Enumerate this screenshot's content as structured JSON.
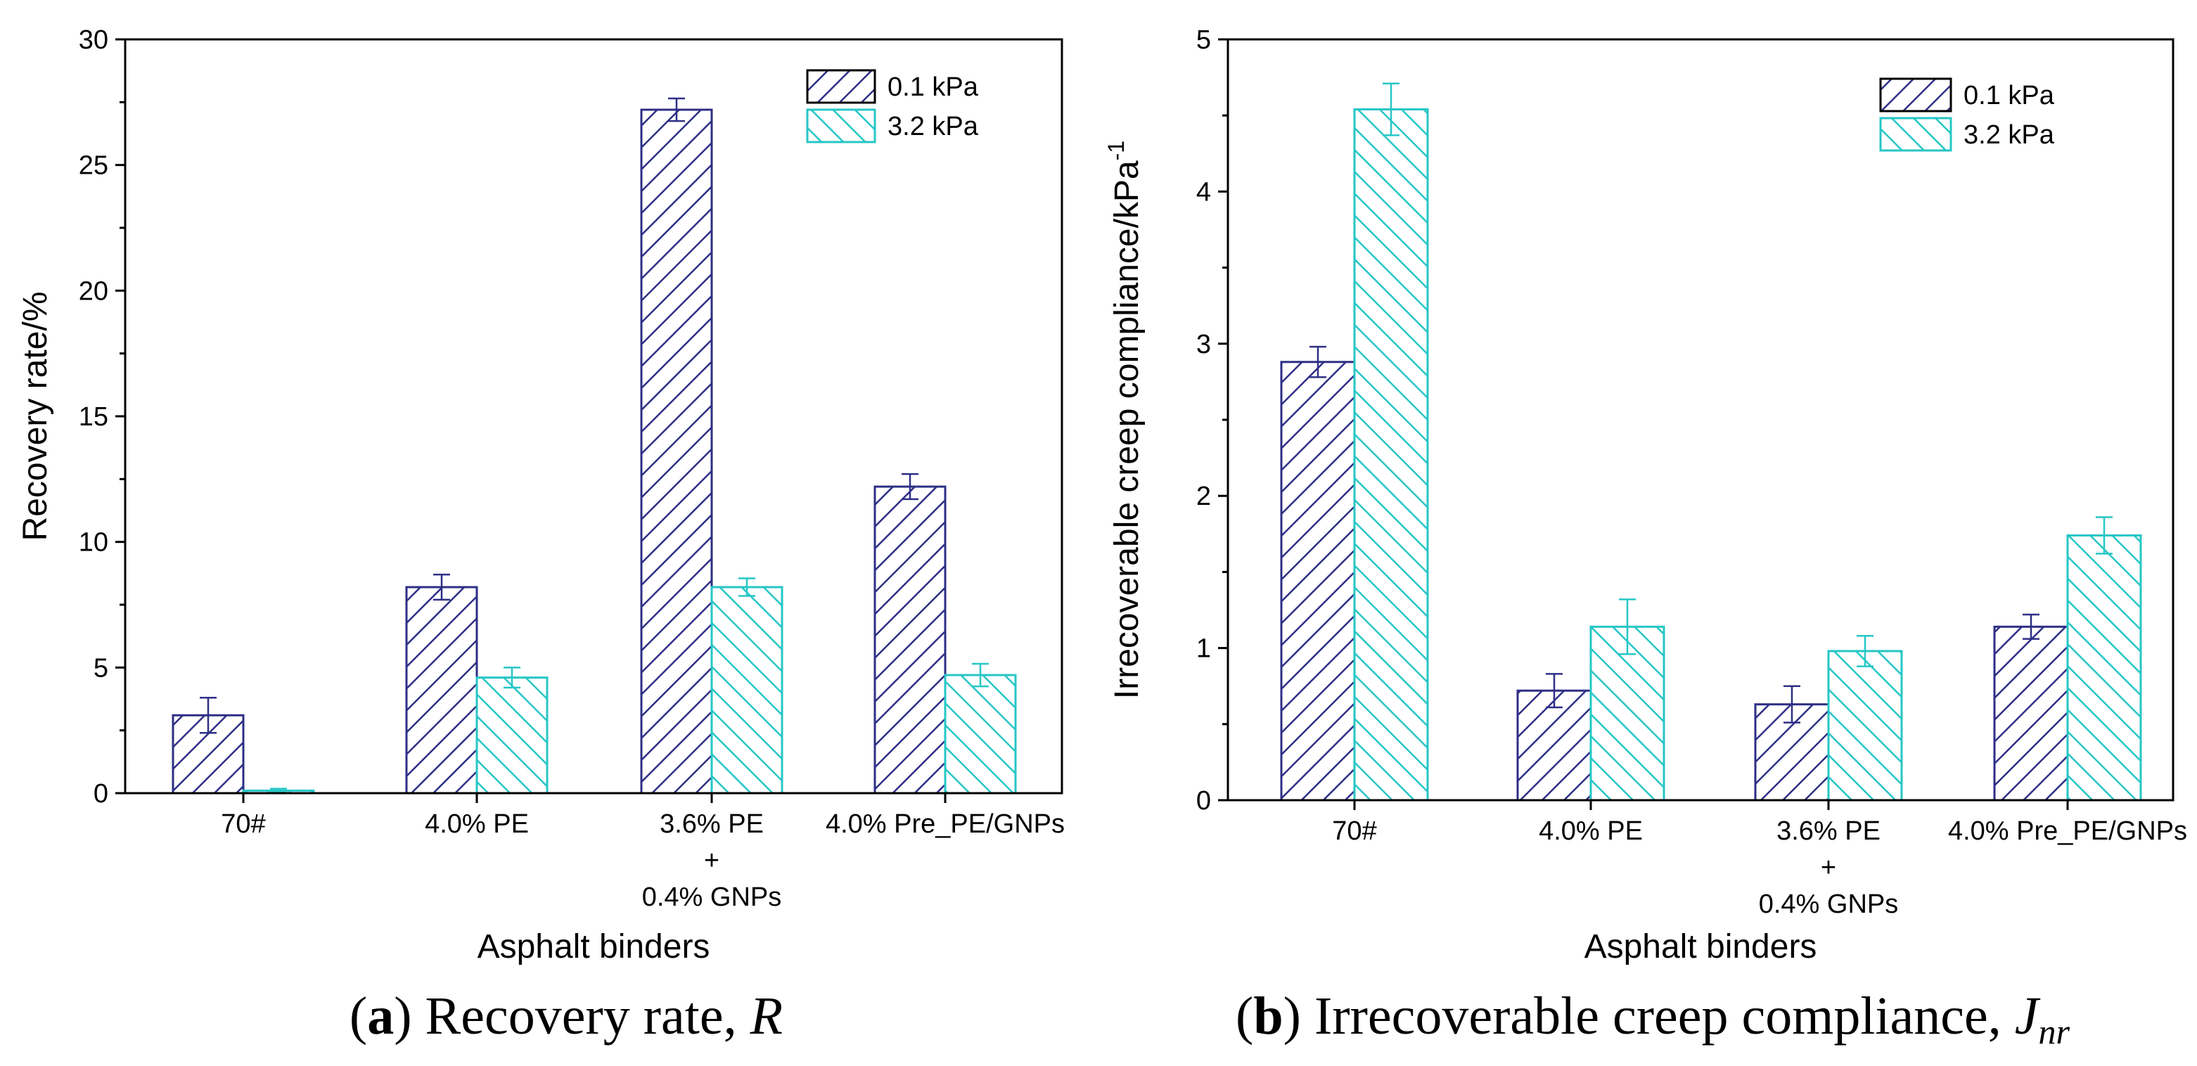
{
  "chart_data": [
    {
      "type": "bar",
      "title": "",
      "xlabel": "Asphalt binders",
      "ylabel": "Recovery rate/%",
      "ylim": [
        0,
        30
      ],
      "yticks": [
        "0",
        "5",
        "10",
        "15",
        "20",
        "25",
        "30"
      ],
      "categories": [
        [
          "70#"
        ],
        [
          "4.0% PE"
        ],
        [
          "3.6% PE",
          "+",
          "0.4% GNPs"
        ],
        [
          "4.0% Pre_PE/GNPs"
        ]
      ],
      "series": [
        {
          "name": "0.1 kPa",
          "color": "#2e2f86",
          "pattern": "hatch-right",
          "values": [
            3.1,
            8.2,
            27.2,
            12.2
          ],
          "errors": [
            0.7,
            0.5,
            0.45,
            0.5
          ]
        },
        {
          "name": "3.2 kPa",
          "color": "#26c6c6",
          "pattern": "hatch-left",
          "values": [
            0.1,
            4.6,
            8.2,
            4.7
          ],
          "errors": [
            0.08,
            0.4,
            0.35,
            0.45
          ]
        }
      ],
      "legend_position": "top-right",
      "caption": {
        "label": "a",
        "text": "Recovery rate, ",
        "symbol": "R",
        "symbol_sub": ""
      }
    },
    {
      "type": "bar",
      "title": "",
      "xlabel": "Asphalt binders",
      "ylabel": "Irrecoverable creep compliance/kPa",
      "ylabel_sup": "-1",
      "ylim": [
        0,
        5
      ],
      "yticks": [
        "0",
        "1",
        "2",
        "3",
        "4",
        "5"
      ],
      "categories": [
        [
          "70#"
        ],
        [
          "4.0% PE"
        ],
        [
          "3.6% PE",
          "+",
          "0.4% GNPs"
        ],
        [
          "4.0% Pre_PE/GNPs"
        ]
      ],
      "series": [
        {
          "name": "0.1 kPa",
          "color": "#2e2f86",
          "pattern": "hatch-right",
          "values": [
            2.88,
            0.72,
            0.63,
            1.14
          ],
          "errors": [
            0.1,
            0.11,
            0.12,
            0.08
          ]
        },
        {
          "name": "3.2 kPa",
          "color": "#26c6c6",
          "pattern": "hatch-left",
          "values": [
            4.54,
            1.14,
            0.98,
            1.74
          ],
          "errors": [
            0.17,
            0.18,
            0.1,
            0.12
          ]
        }
      ],
      "legend_position": "top-right",
      "caption": {
        "label": "b",
        "text": "Irrecoverable creep compliance, ",
        "symbol": "J",
        "symbol_sub": "nr"
      }
    }
  ]
}
